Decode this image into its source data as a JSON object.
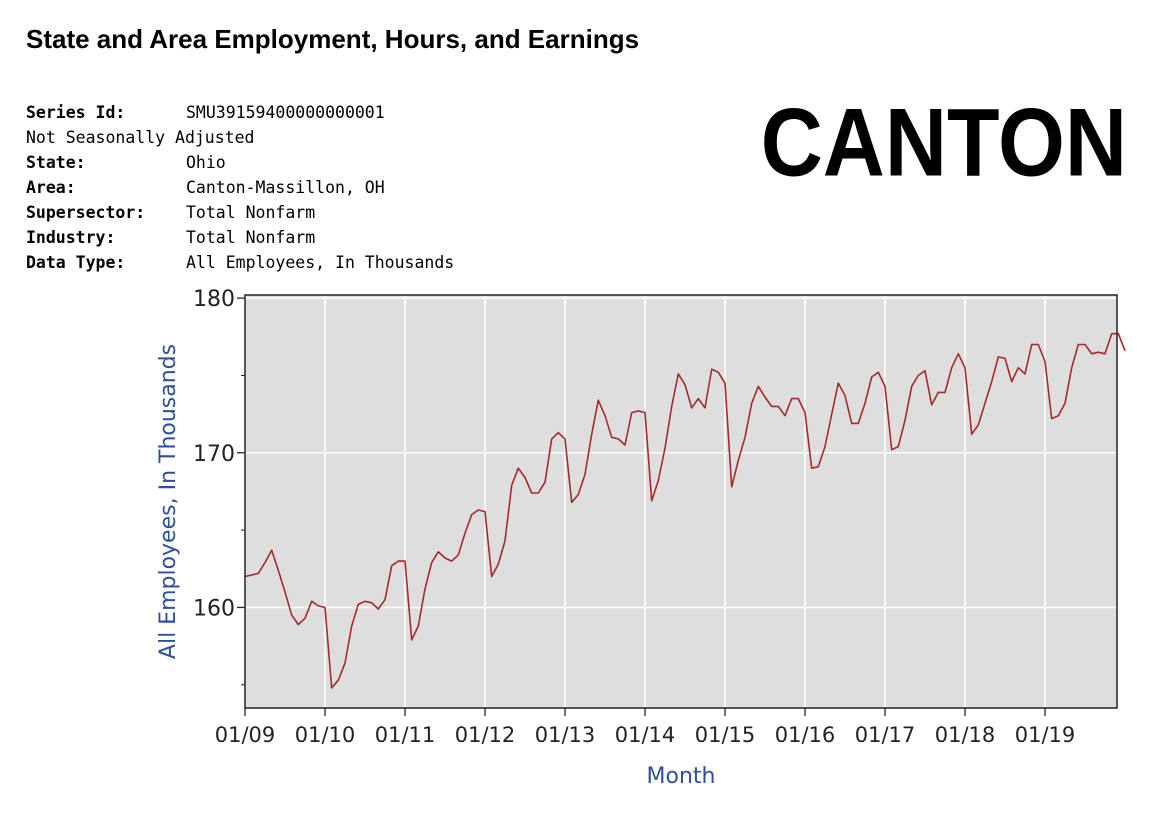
{
  "header": {
    "title": "State and Area Employment, Hours, and Earnings"
  },
  "series_info": {
    "rows": [
      {
        "label": "Series Id:",
        "value": "SMU39159400000000001"
      },
      {
        "label": "",
        "value": "Not Seasonally Adjusted",
        "full": true
      },
      {
        "label": "State:",
        "value": "Ohio"
      },
      {
        "label": "Area:",
        "value": "Canton-Massillon, OH"
      },
      {
        "label": "Supersector:",
        "value": "Total Nonfarm"
      },
      {
        "label": "Industry:",
        "value": "Total Nonfarm"
      },
      {
        "label": "Data Type:",
        "value": "All Employees, In Thousands"
      }
    ]
  },
  "stamp": {
    "text": "CANTON"
  },
  "chart_data": {
    "type": "line",
    "xlabel": "Month",
    "ylabel": "All Employees, In Thousands",
    "ylim": [
      153.5,
      180.2
    ],
    "yticks": [
      160,
      170,
      180
    ],
    "yticklabels": [
      "160",
      "170",
      "180"
    ],
    "xticklabels": [
      "01/09",
      "01/10",
      "01/11",
      "01/12",
      "01/13",
      "01/14",
      "01/15",
      "01/16",
      "01/17",
      "01/18",
      "01/19"
    ],
    "x_start": "01/09",
    "grid": true,
    "colors": {
      "line": "#a52a2a",
      "plot_bg": "#dedede",
      "grid": "#ffffff",
      "axis_label": "#2d4f9e"
    },
    "series": [
      {
        "values": [
          162.0,
          162.1,
          162.2,
          162.9,
          163.7,
          162.4,
          161.0,
          159.5,
          158.9,
          159.3,
          160.4,
          160.1,
          160.0,
          154.8,
          155.3,
          156.4,
          158.8,
          160.2,
          160.4,
          160.3,
          159.9,
          160.5,
          162.7,
          163.0,
          163.0,
          157.9,
          158.8,
          161.2,
          162.9,
          163.6,
          163.2,
          163.0,
          163.4,
          164.8,
          166.0,
          166.3,
          166.2,
          162.0,
          162.8,
          164.3,
          167.9,
          169.0,
          168.4,
          167.4,
          167.4,
          168.1,
          170.9,
          171.3,
          170.9,
          166.8,
          167.3,
          168.6,
          171.2,
          173.4,
          172.4,
          171.0,
          170.9,
          170.5,
          172.6,
          172.7,
          172.6,
          166.9,
          168.2,
          170.3,
          173.0,
          175.1,
          174.4,
          172.9,
          173.5,
          172.9,
          175.4,
          175.2,
          174.5,
          167.8,
          169.5,
          171.0,
          173.2,
          174.3,
          173.6,
          173.0,
          173.0,
          172.4,
          173.5,
          173.5,
          172.6,
          169.0,
          169.1,
          170.4,
          172.5,
          174.5,
          173.7,
          171.9,
          171.9,
          173.2,
          174.9,
          175.2,
          174.3,
          170.2,
          170.4,
          172.1,
          174.3,
          175.0,
          175.3,
          173.1,
          173.9,
          173.9,
          175.5,
          176.4,
          175.5,
          171.2,
          171.8,
          173.2,
          174.6,
          176.2,
          176.1,
          174.6,
          175.5,
          175.1,
          177.0,
          177.0,
          175.9,
          172.2,
          172.4,
          173.2,
          175.5,
          177.0,
          177.0,
          176.4,
          176.5,
          176.4,
          177.7,
          177.7,
          176.6
        ]
      }
    ]
  }
}
